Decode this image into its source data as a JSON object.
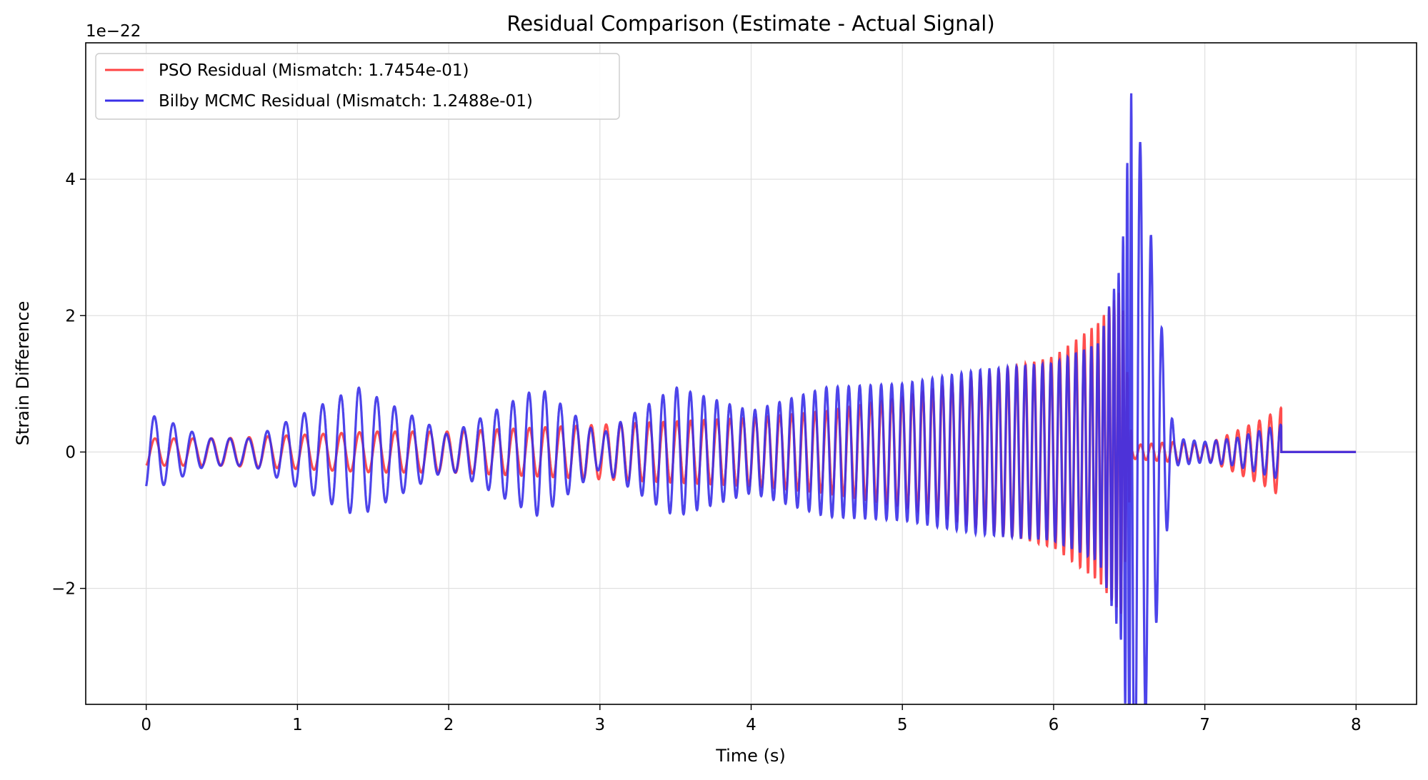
{
  "chart_data": {
    "type": "line",
    "title": "Residual Comparison (Estimate - Actual Signal)",
    "xlabel": "Time (s)",
    "ylabel": "Strain Difference",
    "offset_text": "1e−22",
    "xlim": [
      -0.4,
      8.4
    ],
    "ylim": [
      -3.7,
      6.0
    ],
    "xticks": [
      0,
      1,
      2,
      3,
      4,
      5,
      6,
      7,
      8
    ],
    "yticks": [
      -2,
      0,
      2,
      4
    ],
    "ytick_labels": [
      "−2",
      "0",
      "2",
      "4"
    ],
    "grid": true,
    "legend_position": "top-left",
    "colors": {
      "pso": "#ff4444",
      "mcmc": "#3a30e8",
      "overlap": "#4b1fcf"
    },
    "series": [
      {
        "name": "PSO Residual (Mismatch: 1.7454e-01)",
        "color": "#ff4444",
        "description_points": {
          "t": [
            0.0,
            0.5,
            1.0,
            1.5,
            2.0,
            2.5,
            3.0,
            3.5,
            4.0,
            4.5,
            5.0,
            5.5,
            6.0,
            6.3,
            6.45,
            6.52,
            6.8,
            7.0,
            7.2,
            7.4,
            7.5,
            8.0
          ],
          "envelope": [
            0.2,
            0.2,
            0.25,
            0.3,
            0.3,
            0.35,
            0.4,
            0.45,
            0.5,
            0.6,
            0.8,
            1.1,
            1.4,
            1.9,
            2.4,
            0.1,
            0.15,
            0.1,
            0.3,
            0.5,
            0.65,
            0.0
          ]
        }
      },
      {
        "name": "Bilby MCMC Residual (Mismatch: 1.2488e-01)",
        "color": "#3a30e8",
        "description_points": {
          "t": [
            0.0,
            0.1,
            0.4,
            0.7,
            1.4,
            2.0,
            2.6,
            3.0,
            3.5,
            4.0,
            4.5,
            5.0,
            5.5,
            6.0,
            6.3,
            6.45,
            6.52,
            6.8,
            7.0,
            7.2,
            7.5,
            8.0
          ],
          "envelope": [
            0.55,
            0.5,
            0.2,
            0.2,
            0.95,
            0.25,
            0.95,
            0.25,
            0.95,
            0.6,
            0.95,
            1.0,
            1.2,
            1.3,
            1.6,
            2.8,
            5.55,
            0.2,
            0.15,
            0.2,
            0.4,
            0.0
          ]
        }
      }
    ]
  }
}
